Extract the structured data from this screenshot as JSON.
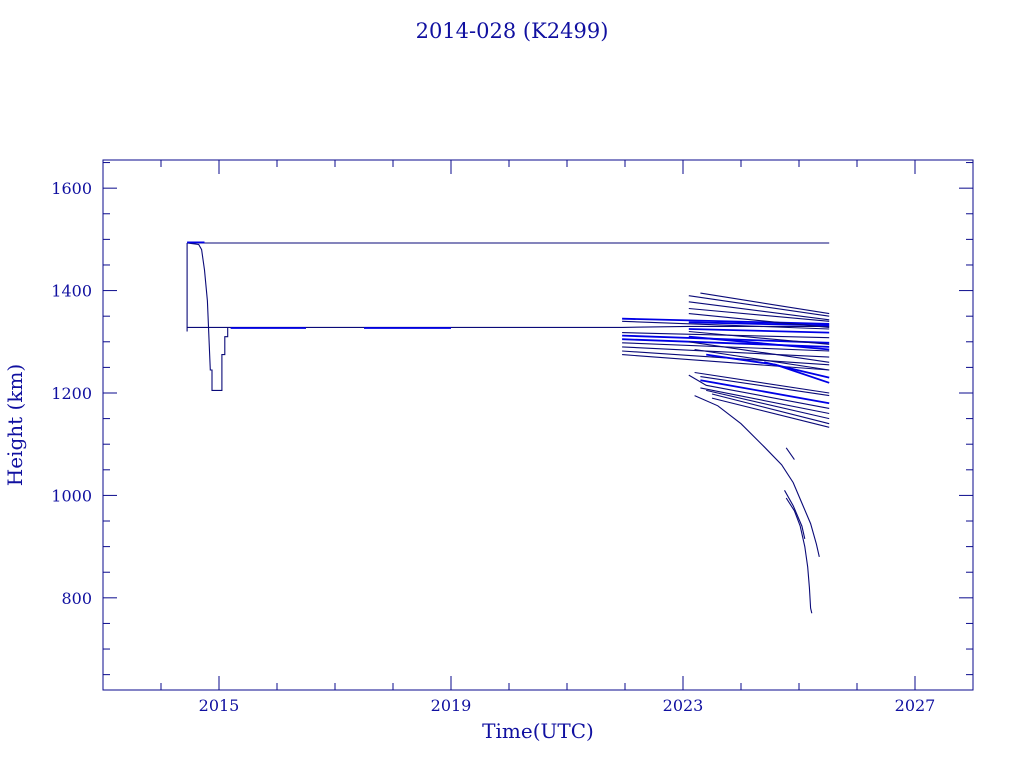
{
  "chart_data": {
    "type": "line",
    "title": "2014-028 (K2499)",
    "xlabel": "Time(UTC)",
    "ylabel": "Height (km)",
    "xlim": [
      2013.0,
      2028.0
    ],
    "ylim": [
      620,
      1655
    ],
    "x_ticks": [
      2015,
      2019,
      2023,
      2027
    ],
    "y_ticks": [
      800,
      1000,
      1200,
      1400,
      1600
    ],
    "grid": false,
    "colors": {
      "axis": "#0a0a8c",
      "text": "#1010a0",
      "trace_dark": "#0a0a78",
      "trace_bright": "#0000e6"
    },
    "series": [
      {
        "color": "dark",
        "points": [
          [
            2014.45,
            1493
          ],
          [
            2025.52,
            1493
          ]
        ]
      },
      {
        "color": "dark",
        "points": [
          [
            2014.45,
            1328
          ],
          [
            2021.95,
            1328
          ],
          [
            2023.1,
            1330
          ],
          [
            2025.52,
            1330
          ]
        ]
      },
      {
        "color": "dark",
        "points": [
          [
            2014.45,
            1493
          ],
          [
            2014.45,
            1320
          ]
        ]
      },
      {
        "color": "dark",
        "points": [
          [
            2014.45,
            1493
          ],
          [
            2014.65,
            1490
          ],
          [
            2014.7,
            1480
          ],
          [
            2014.75,
            1440
          ],
          [
            2014.8,
            1380
          ],
          [
            2014.85,
            1245
          ],
          [
            2014.88,
            1245
          ],
          [
            2014.88,
            1205
          ],
          [
            2015.05,
            1205
          ],
          [
            2015.05,
            1275
          ],
          [
            2015.1,
            1275
          ],
          [
            2015.1,
            1310
          ],
          [
            2015.15,
            1310
          ],
          [
            2015.15,
            1328
          ]
        ]
      },
      {
        "color": "bright",
        "points": [
          [
            2014.45,
            1494
          ],
          [
            2014.75,
            1494
          ]
        ]
      },
      {
        "color": "bright",
        "points": [
          [
            2015.2,
            1327
          ],
          [
            2016.5,
            1327
          ]
        ]
      },
      {
        "color": "bright",
        "points": [
          [
            2017.5,
            1327
          ],
          [
            2019.0,
            1327
          ]
        ]
      },
      {
        "color": "dark",
        "points": [
          [
            2021.95,
            1340
          ],
          [
            2025.52,
            1325
          ]
        ]
      },
      {
        "color": "bright",
        "points": [
          [
            2021.95,
            1345
          ],
          [
            2025.52,
            1335
          ]
        ]
      },
      {
        "color": "dark",
        "points": [
          [
            2021.95,
            1318
          ],
          [
            2025.52,
            1308
          ]
        ]
      },
      {
        "color": "bright",
        "points": [
          [
            2021.95,
            1312
          ],
          [
            2025.52,
            1298
          ]
        ]
      },
      {
        "color": "bright",
        "points": [
          [
            2021.95,
            1305
          ],
          [
            2025.52,
            1290
          ]
        ]
      },
      {
        "color": "dark",
        "points": [
          [
            2021.95,
            1298
          ],
          [
            2025.52,
            1282
          ]
        ]
      },
      {
        "color": "dark",
        "points": [
          [
            2021.95,
            1290
          ],
          [
            2025.52,
            1270
          ]
        ]
      },
      {
        "color": "dark",
        "points": [
          [
            2021.95,
            1282
          ],
          [
            2025.52,
            1255
          ]
        ]
      },
      {
        "color": "dark",
        "points": [
          [
            2021.95,
            1275
          ],
          [
            2025.52,
            1245
          ]
        ]
      },
      {
        "color": "bright",
        "points": [
          [
            2023.1,
            1338
          ],
          [
            2025.52,
            1332
          ]
        ]
      },
      {
        "color": "bright",
        "points": [
          [
            2023.1,
            1325
          ],
          [
            2025.52,
            1318
          ]
        ]
      },
      {
        "color": "dark",
        "points": [
          [
            2023.1,
            1390
          ],
          [
            2025.52,
            1350
          ]
        ]
      },
      {
        "color": "dark",
        "points": [
          [
            2023.3,
            1395
          ],
          [
            2025.52,
            1355
          ]
        ]
      },
      {
        "color": "dark",
        "points": [
          [
            2023.1,
            1378
          ],
          [
            2025.52,
            1343
          ]
        ]
      },
      {
        "color": "dark",
        "points": [
          [
            2023.1,
            1365
          ],
          [
            2025.52,
            1340
          ]
        ]
      },
      {
        "color": "dark",
        "points": [
          [
            2023.1,
            1355
          ],
          [
            2025.52,
            1328
          ]
        ]
      },
      {
        "color": "dark",
        "points": [
          [
            2023.1,
            1320
          ],
          [
            2025.52,
            1295
          ]
        ]
      },
      {
        "color": "bright",
        "points": [
          [
            2023.1,
            1310
          ],
          [
            2025.52,
            1285
          ]
        ]
      },
      {
        "color": "dark",
        "points": [
          [
            2023.1,
            1300
          ],
          [
            2025.52,
            1260
          ]
        ]
      },
      {
        "color": "dark",
        "points": [
          [
            2023.2,
            1285
          ],
          [
            2025.52,
            1245
          ]
        ]
      },
      {
        "color": "bright",
        "points": [
          [
            2023.4,
            1275
          ],
          [
            2024.6,
            1255
          ],
          [
            2025.52,
            1220
          ]
        ]
      },
      {
        "color": "bright",
        "points": [
          [
            2024.4,
            1260
          ],
          [
            2025.52,
            1230
          ]
        ]
      },
      {
        "color": "dark",
        "points": [
          [
            2023.2,
            1240
          ],
          [
            2025.52,
            1200
          ]
        ]
      },
      {
        "color": "dark",
        "points": [
          [
            2023.3,
            1232
          ],
          [
            2025.52,
            1195
          ]
        ]
      },
      {
        "color": "bright",
        "points": [
          [
            2023.3,
            1225
          ],
          [
            2025.52,
            1180
          ]
        ]
      },
      {
        "color": "dark",
        "points": [
          [
            2023.1,
            1235
          ],
          [
            2023.4,
            1215
          ],
          [
            2025.52,
            1170
          ]
        ]
      },
      {
        "color": "dark",
        "points": [
          [
            2023.3,
            1210
          ],
          [
            2025.52,
            1160
          ]
        ]
      },
      {
        "color": "dark",
        "points": [
          [
            2023.4,
            1205
          ],
          [
            2025.52,
            1150
          ]
        ]
      },
      {
        "color": "dark",
        "points": [
          [
            2023.5,
            1198
          ],
          [
            2025.52,
            1140
          ]
        ]
      },
      {
        "color": "dark",
        "points": [
          [
            2023.5,
            1190
          ],
          [
            2025.52,
            1133
          ]
        ]
      },
      {
        "color": "dark",
        "points": [
          [
            2023.2,
            1195
          ],
          [
            2023.6,
            1175
          ],
          [
            2024.0,
            1140
          ],
          [
            2024.4,
            1095
          ],
          [
            2024.7,
            1060
          ],
          [
            2024.9,
            1025
          ],
          [
            2025.05,
            985
          ],
          [
            2025.2,
            945
          ],
          [
            2025.3,
            905
          ],
          [
            2025.35,
            880
          ]
        ]
      },
      {
        "color": "dark",
        "points": [
          [
            2024.78,
            1093
          ],
          [
            2024.92,
            1070
          ]
        ]
      },
      {
        "color": "dark",
        "points": [
          [
            2024.75,
            1010
          ],
          [
            2024.9,
            980
          ],
          [
            2025.05,
            940
          ],
          [
            2025.1,
            915
          ]
        ]
      },
      {
        "color": "dark",
        "points": [
          [
            2024.78,
            995
          ],
          [
            2024.92,
            970
          ],
          [
            2025.02,
            940
          ],
          [
            2025.1,
            900
          ],
          [
            2025.15,
            860
          ],
          [
            2025.18,
            820
          ],
          [
            2025.2,
            780
          ],
          [
            2025.22,
            770
          ]
        ]
      }
    ]
  }
}
